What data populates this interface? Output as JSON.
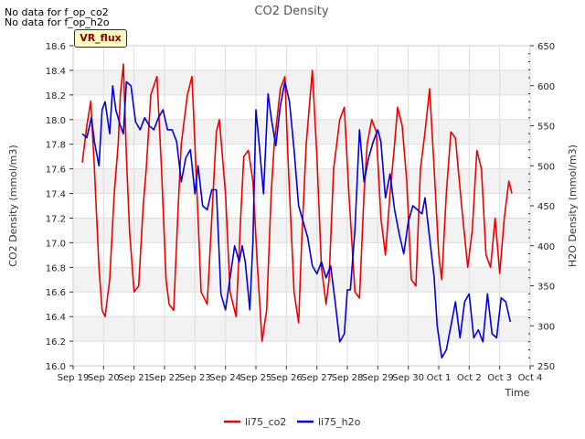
{
  "notes": [
    "No data for f_op_co2",
    "No data for f_op_h2o"
  ],
  "badge": "VR_flux",
  "chart_data": {
    "type": "line",
    "title": "CO2 Density",
    "xlabel": "Time",
    "ylabel": "CO2 Density (mmol/m3)",
    "y2label": "H2O Density (mmol/m3)",
    "x_ticks": [
      "Sep 19",
      "Sep 20",
      "Sep 21",
      "Sep 22",
      "Sep 23",
      "Sep 24",
      "Sep 25",
      "Sep 26",
      "Sep 27",
      "Sep 28",
      "Sep 29",
      "Sep 30",
      "Oct 1",
      "Oct 2",
      "Oct 3",
      "Oct 4"
    ],
    "xlim": [
      0,
      15
    ],
    "ylim": [
      16.0,
      18.6
    ],
    "y_ticks": [
      "16.0",
      "16.2",
      "16.4",
      "16.6",
      "16.8",
      "17.0",
      "17.2",
      "17.4",
      "17.6",
      "17.8",
      "18.0",
      "18.2",
      "18.4",
      "18.6"
    ],
    "y2lim": [
      250,
      650
    ],
    "y2_ticks": [
      "250",
      "300",
      "350",
      "400",
      "450",
      "500",
      "550",
      "600",
      "650"
    ],
    "series": [
      {
        "name": "li75_co2",
        "axis": "left",
        "color": "#ee0000",
        "x": [
          0.3,
          0.45,
          0.58,
          0.7,
          0.85,
          0.95,
          1.05,
          1.2,
          1.35,
          1.48,
          1.55,
          1.65,
          1.75,
          1.85,
          2.0,
          2.15,
          2.3,
          2.4,
          2.55,
          2.75,
          2.9,
          3.05,
          3.15,
          3.3,
          3.45,
          3.55,
          3.75,
          3.9,
          4.05,
          4.2,
          4.4,
          4.55,
          4.7,
          4.8,
          5.0,
          5.15,
          5.35,
          5.5,
          5.6,
          5.75,
          5.9,
          6.05,
          6.2,
          6.35,
          6.5,
          6.6,
          6.8,
          6.95,
          7.05,
          7.25,
          7.4,
          7.5,
          7.65,
          7.85,
          8.0,
          8.15,
          8.3,
          8.4,
          8.55,
          8.75,
          8.9,
          9.05,
          9.25,
          9.4,
          9.55,
          9.65,
          9.8,
          9.95,
          10.1,
          10.25,
          10.4,
          10.55,
          10.65,
          10.8,
          10.95,
          11.1,
          11.25,
          11.4,
          11.55,
          11.7,
          11.85,
          12.0,
          12.1,
          12.25,
          12.4,
          12.55,
          12.75,
          12.95,
          13.1,
          13.25,
          13.4,
          13.55,
          13.7,
          13.85,
          14.0,
          14.15,
          14.3,
          14.4
        ],
        "values": [
          17.65,
          17.95,
          18.15,
          17.6,
          16.8,
          16.45,
          16.4,
          16.7,
          17.4,
          17.8,
          18.2,
          18.45,
          17.7,
          17.1,
          16.6,
          16.65,
          17.3,
          17.6,
          18.2,
          18.35,
          17.6,
          16.7,
          16.5,
          16.45,
          17.3,
          17.8,
          18.2,
          18.35,
          17.5,
          16.6,
          16.5,
          17.2,
          17.9,
          18.0,
          17.4,
          16.6,
          16.4,
          17.2,
          17.7,
          17.75,
          17.5,
          16.8,
          16.2,
          16.45,
          17.4,
          17.8,
          18.25,
          18.35,
          17.7,
          16.6,
          16.35,
          17.0,
          17.8,
          18.4,
          17.7,
          16.8,
          16.5,
          16.7,
          17.6,
          18.0,
          18.1,
          17.4,
          16.6,
          16.55,
          17.4,
          17.8,
          18.0,
          17.9,
          17.2,
          16.9,
          17.4,
          17.8,
          18.1,
          17.95,
          17.5,
          16.7,
          16.65,
          17.6,
          17.9,
          18.25,
          17.6,
          16.9,
          16.7,
          17.4,
          17.9,
          17.85,
          17.3,
          16.8,
          17.1,
          17.75,
          17.6,
          16.9,
          16.8,
          17.2,
          16.75,
          17.2,
          17.5,
          17.4
        ]
      },
      {
        "name": "li75_h2o",
        "axis": "right",
        "color": "#0000dd",
        "x": [
          0.3,
          0.45,
          0.6,
          0.7,
          0.85,
          0.95,
          1.05,
          1.2,
          1.3,
          1.4,
          1.55,
          1.65,
          1.75,
          1.9,
          2.05,
          2.2,
          2.35,
          2.5,
          2.65,
          2.8,
          2.95,
          3.1,
          3.25,
          3.4,
          3.55,
          3.7,
          3.85,
          4.0,
          4.1,
          4.25,
          4.4,
          4.55,
          4.7,
          4.85,
          5.0,
          5.15,
          5.3,
          5.45,
          5.55,
          5.65,
          5.8,
          5.9,
          6.0,
          6.1,
          6.25,
          6.4,
          6.5,
          6.65,
          6.8,
          6.95,
          7.1,
          7.25,
          7.4,
          7.55,
          7.7,
          7.85,
          8.0,
          8.15,
          8.3,
          8.45,
          8.6,
          8.75,
          8.9,
          9.0,
          9.1,
          9.25,
          9.4,
          9.55,
          9.7,
          9.85,
          10.0,
          10.1,
          10.25,
          10.4,
          10.55,
          10.7,
          10.85,
          11.0,
          11.15,
          11.3,
          11.45,
          11.55,
          11.7,
          11.85,
          11.95,
          12.1,
          12.25,
          12.4,
          12.55,
          12.7,
          12.85,
          13.0,
          13.15,
          13.3,
          13.45,
          13.6,
          13.75,
          13.9,
          14.05,
          14.2,
          14.35
        ],
        "values": [
          540,
          535,
          560,
          530,
          500,
          570,
          580,
          540,
          600,
          570,
          550,
          540,
          605,
          600,
          555,
          545,
          560,
          550,
          545,
          560,
          570,
          545,
          545,
          530,
          480,
          510,
          520,
          465,
          500,
          450,
          445,
          470,
          470,
          340,
          320,
          360,
          400,
          380,
          400,
          380,
          320,
          405,
          570,
          530,
          465,
          590,
          560,
          525,
          575,
          605,
          580,
          520,
          450,
          430,
          410,
          375,
          365,
          380,
          360,
          375,
          330,
          280,
          290,
          345,
          345,
          420,
          545,
          480,
          510,
          530,
          545,
          530,
          460,
          490,
          445,
          415,
          390,
          430,
          450,
          445,
          440,
          460,
          410,
          360,
          300,
          260,
          270,
          300,
          330,
          285,
          330,
          340,
          285,
          295,
          280,
          340,
          290,
          285,
          335,
          330,
          305
        ]
      }
    ]
  }
}
